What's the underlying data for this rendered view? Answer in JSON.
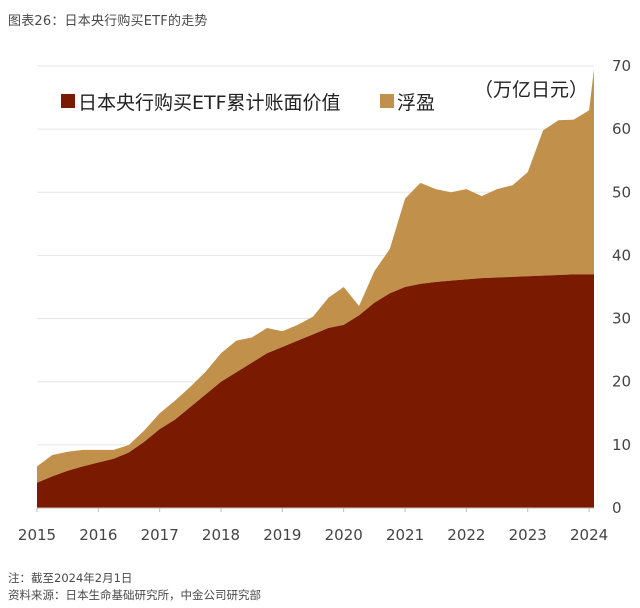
{
  "header": {
    "title": "图表26：日本央行购买ETF的走势"
  },
  "footer": {
    "note": "注：截至2024年2月1日",
    "source": "资料来源：日本生命基础研究所，中金公司研究部"
  },
  "colors": {
    "book_value": "#7a1a00",
    "unrealized_gain": "#c1904b",
    "grid": "#e6e6e6"
  },
  "chart_data": {
    "type": "area",
    "stacked": true,
    "title": "日本央行购买ETF的走势",
    "unit_label": "（万亿日元）",
    "xlabel": "",
    "ylabel": "",
    "xlim": [
      2015.0,
      2024.08
    ],
    "ylim": [
      0,
      70
    ],
    "y_ticks": [
      "0",
      "10",
      "20",
      "30",
      "40",
      "50",
      "60",
      "70"
    ],
    "x_ticks": [
      "2015",
      "2016",
      "2017",
      "2018",
      "2019",
      "2020",
      "2021",
      "2022",
      "2023",
      "2024"
    ],
    "legend": {
      "position": "top-left",
      "entries": [
        "日本央行购买ETF累计账面价值",
        "浮盈"
      ]
    },
    "x": [
      2015.0,
      2015.25,
      2015.5,
      2015.75,
      2016.0,
      2016.25,
      2016.5,
      2016.75,
      2017.0,
      2017.25,
      2017.5,
      2017.75,
      2018.0,
      2018.25,
      2018.5,
      2018.75,
      2019.0,
      2019.25,
      2019.5,
      2019.75,
      2020.0,
      2020.25,
      2020.5,
      2020.75,
      2021.0,
      2021.25,
      2021.5,
      2021.75,
      2022.0,
      2022.25,
      2022.5,
      2022.75,
      2023.0,
      2023.25,
      2023.5,
      2023.75,
      2024.0,
      2024.08
    ],
    "series": [
      {
        "name": "日本央行购买ETF累计账面价值",
        "values": [
          4.0,
          5.0,
          5.9,
          6.6,
          7.2,
          7.8,
          8.8,
          10.5,
          12.5,
          14.0,
          16.0,
          18.0,
          20.0,
          21.5,
          23.0,
          24.5,
          25.5,
          26.5,
          27.5,
          28.5,
          29.0,
          30.5,
          32.5,
          34.0,
          35.0,
          35.5,
          35.8,
          36.0,
          36.2,
          36.4,
          36.5,
          36.6,
          36.7,
          36.8,
          36.9,
          37.0,
          37.0,
          37.0
        ]
      },
      {
        "name": "浮盈",
        "values": [
          2.6,
          3.4,
          3.0,
          2.6,
          2.0,
          1.4,
          1.2,
          1.8,
          2.5,
          3.0,
          3.2,
          3.6,
          4.5,
          5.0,
          4.0,
          4.0,
          2.5,
          2.5,
          2.8,
          4.8,
          6.0,
          1.5,
          5.0,
          7.0,
          14.0,
          16.0,
          14.7,
          14.0,
          14.3,
          13.0,
          14.0,
          14.5,
          16.5,
          23.0,
          24.5,
          24.5,
          26.0,
          32.5
        ]
      }
    ]
  }
}
